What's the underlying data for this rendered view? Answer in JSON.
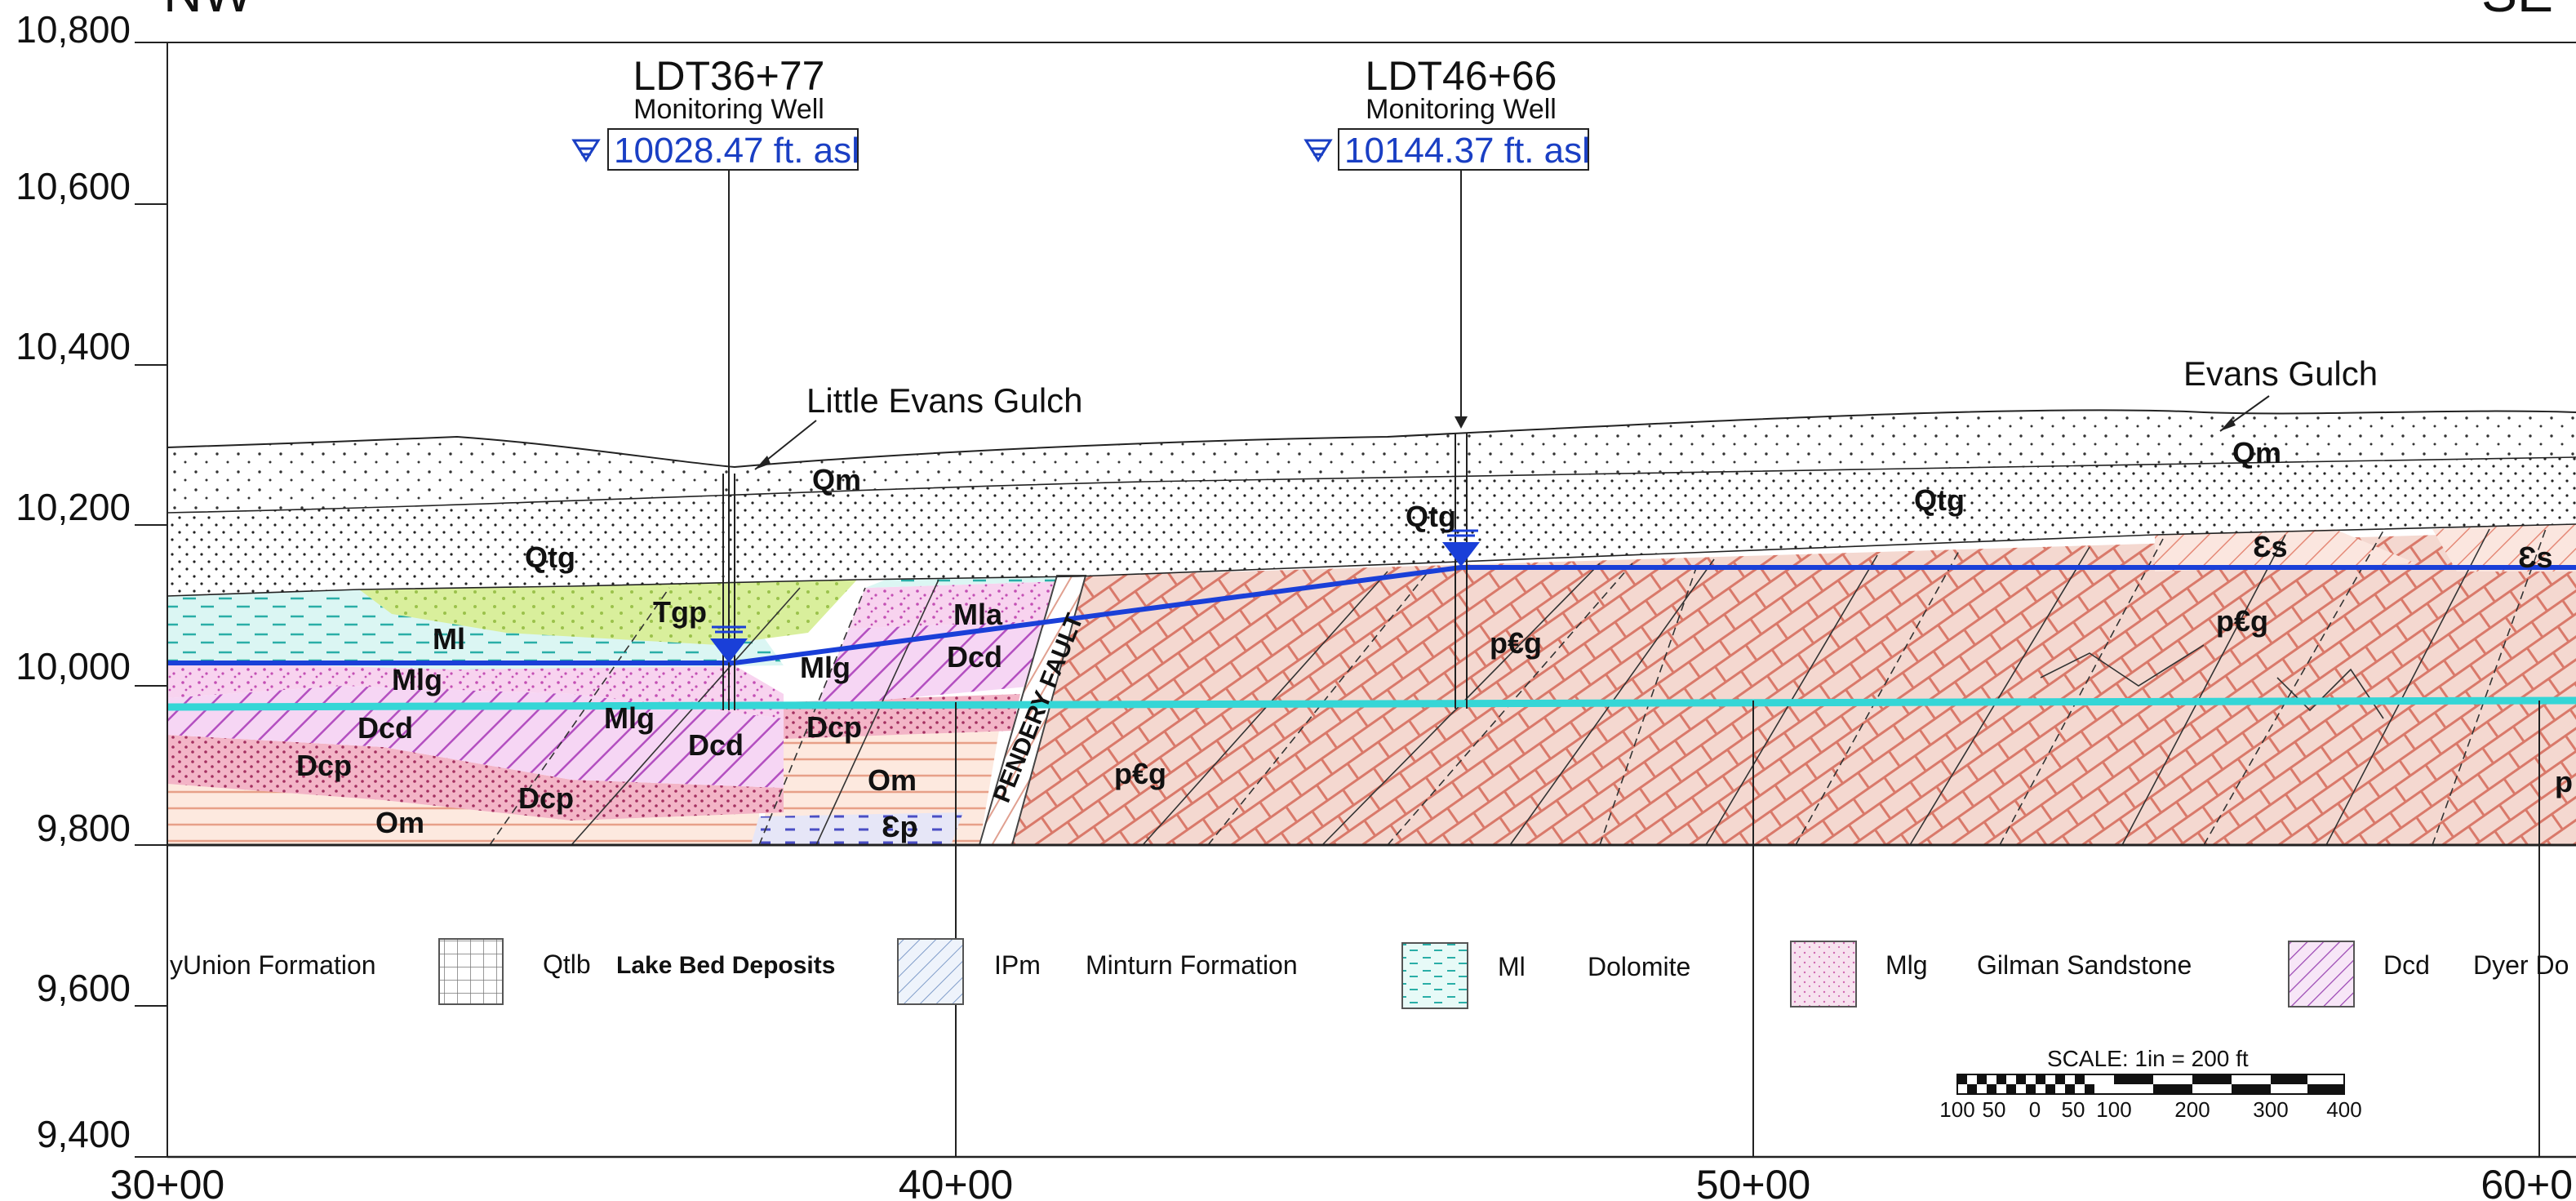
{
  "chart_data": {
    "type": "cross-section",
    "direction_labels": {
      "left": "NW",
      "right": "SE"
    },
    "y_axis": {
      "ticks": [
        "10,800",
        "10,600",
        "10,400",
        "10,200",
        "10,000",
        "9,800",
        "9,600",
        "9,400"
      ],
      "range": [
        9400,
        10800
      ]
    },
    "x_axis": {
      "ticks": [
        "30+00",
        "40+00",
        "50+00",
        "60+0"
      ]
    },
    "wells": [
      {
        "name": "LDT36+77",
        "type": "Monitoring Well",
        "water_level": "10028.47 ft. asl"
      },
      {
        "name": "LDT46+66",
        "type": "Monitoring Well",
        "water_level": "10144.37 ft. asl"
      }
    ],
    "annotations": [
      "Little Evans Gulch",
      "Evans Gulch",
      "PENDERY FAULT"
    ],
    "unit_labels": [
      "Qm",
      "Qtg",
      "Qtg",
      "Qm",
      "Qtg",
      "Ɛs",
      "Ɛs",
      "Tgp",
      "Ml",
      "Mlg",
      "Mlg",
      "Dcd",
      "Dcd",
      "Dcp",
      "Dcp",
      "Om",
      "Om",
      "Mlg",
      "Dcd",
      "Mla",
      "Dcp",
      "Ɛp",
      "p€g",
      "p€g",
      "p€g",
      "p"
    ],
    "water_table_line_color": "#1a3fd8",
    "reference_line_color": "#35d6d6"
  },
  "legend": [
    {
      "symbol": "",
      "code": "",
      "name": "Union Formation",
      "prefix": "y"
    },
    {
      "symbol": "grid",
      "code": "Qtlb",
      "name": "Lake Bed Deposits"
    },
    {
      "symbol": "hatch-blue",
      "code": "IPm",
      "name": "Minturn Formation"
    },
    {
      "symbol": "dolomite",
      "code": "Ml",
      "name": "Dolomite"
    },
    {
      "symbol": "speckle-pink",
      "code": "Mlg",
      "name": "Gilman Sandstone"
    },
    {
      "symbol": "hatch-purple",
      "code": "Dcd",
      "name": "Dyer Do"
    }
  ],
  "scale": {
    "title": "SCALE:  1in  =  200 ft",
    "ticks": [
      "100",
      "50",
      "0",
      "50",
      "100",
      "200",
      "300",
      "400"
    ]
  }
}
